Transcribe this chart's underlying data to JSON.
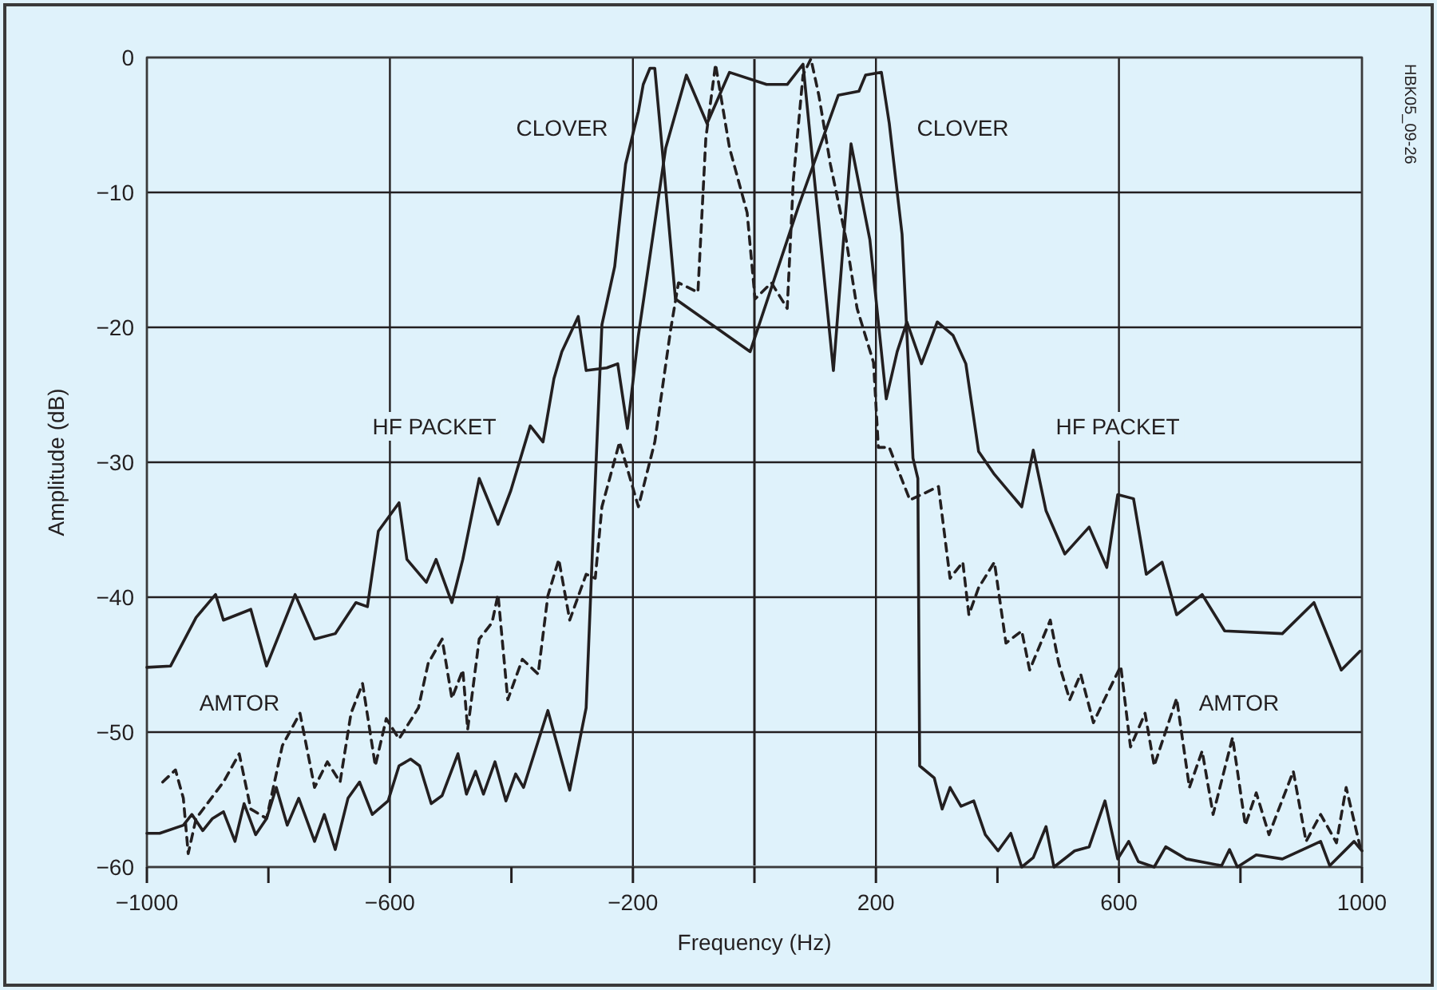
{
  "chart_data": {
    "type": "line",
    "xlabel": "Frequency (Hz)",
    "ylabel": "Amplitude (dB)",
    "xlim": [
      -1000,
      1000
    ],
    "ylim": [
      -60,
      0
    ],
    "xticks": [
      -1000,
      {
        "value": -800,
        "label": null
      },
      -600,
      {
        "value": -400,
        "label": null
      },
      -200,
      {
        "value": 0,
        "label": null
      },
      200,
      {
        "value": 400,
        "label": null
      },
      600,
      {
        "value": 800,
        "label": null
      },
      1000
    ],
    "yticks": [
      -60,
      -50,
      -40,
      -30,
      -20,
      -10,
      0
    ],
    "grid": true,
    "marker": "none",
    "ref_lines": [
      {
        "axis": "x",
        "value": 0,
        "label": null
      }
    ],
    "annotations": [
      "CLOVER",
      "CLOVER",
      "HF PACKET",
      "HF PACKET",
      "AMTOR",
      "AMTOR",
      "HBK05_09-26"
    ],
    "series": [
      {
        "color": "#231f20",
        "line_style": "solid",
        "x": [
          -1000,
          -961,
          -919,
          -887,
          -874,
          -829,
          -803,
          -756,
          -724,
          -690,
          -656,
          -637,
          -619,
          -585,
          -572,
          -540,
          -524,
          -498,
          -480,
          -453,
          -422,
          -401,
          -369,
          -348,
          -330,
          -317,
          -290,
          -277,
          -243,
          -225,
          -209,
          -191,
          -146,
          -112,
          -78,
          -41,
          20,
          54,
          80,
          130,
          159,
          190,
          217,
          235,
          251,
          275,
          301,
          327,
          348,
          369,
          395,
          440,
          459,
          480,
          511,
          551,
          580,
          598,
          624,
          645,
          671,
          695,
          737,
          774,
          869,
          921,
          966,
          997
        ],
        "values": [
          -45.2,
          -45.1,
          -41.5,
          -39.8,
          -41.7,
          -40.9,
          -45.1,
          -39.8,
          -43.1,
          -42.7,
          -40.4,
          -40.7,
          -35.1,
          -33.0,
          -37.2,
          -38.9,
          -37.2,
          -40.4,
          -37.2,
          -31.2,
          -34.6,
          -32.1,
          -27.3,
          -28.5,
          -23.8,
          -21.8,
          -19.2,
          -23.2,
          -23.0,
          -22.7,
          -27.5,
          -20.6,
          -6.7,
          -1.3,
          -4.9,
          -1.1,
          -2.0,
          -2.0,
          -0.5,
          -23.2,
          -6.4,
          -13.5,
          -25.3,
          -21.8,
          -19.6,
          -22.7,
          -19.6,
          -20.6,
          -22.7,
          -29.2,
          -30.9,
          -33.3,
          -29.1,
          -33.6,
          -36.8,
          -34.8,
          -37.8,
          -32.4,
          -32.7,
          -38.3,
          -37.4,
          -41.3,
          -39.8,
          -42.5,
          -42.7,
          -40.4,
          -45.4,
          -44.0
        ]
      },
      {
        "color": "#231f20",
        "line_style": "dashed",
        "x": [
          -974,
          -953,
          -940,
          -932,
          -919,
          -874,
          -848,
          -829,
          -803,
          -777,
          -748,
          -724,
          -703,
          -682,
          -664,
          -645,
          -624,
          -606,
          -585,
          -553,
          -537,
          -514,
          -498,
          -480,
          -472,
          -453,
          -432,
          -422,
          -406,
          -382,
          -356,
          -340,
          -322,
          -304,
          -277,
          -262,
          -251,
          -222,
          -191,
          -164,
          -138,
          -125,
          -93,
          -80,
          -64,
          -41,
          -12,
          1,
          28,
          54,
          64,
          80,
          93,
          106,
          125,
          151,
          169,
          196,
          204,
          222,
          256,
          303,
          322,
          343,
          353,
          369,
          395,
          414,
          440,
          453,
          487,
          501,
          519,
          537,
          558,
          577,
          603,
          619,
          643,
          658,
          695,
          716,
          737,
          755,
          787,
          808,
          826,
          847,
          887,
          908,
          932,
          958,
          974,
          997
        ],
        "values": [
          -53.7,
          -52.8,
          -54.9,
          -59.0,
          -56.4,
          -53.7,
          -51.6,
          -55.7,
          -56.4,
          -51.0,
          -48.6,
          -54.1,
          -52.2,
          -53.7,
          -48.6,
          -46.4,
          -52.5,
          -49.0,
          -50.5,
          -48.2,
          -44.9,
          -43.1,
          -47.5,
          -45.4,
          -49.8,
          -43.1,
          -41.9,
          -39.8,
          -47.6,
          -44.6,
          -45.7,
          -39.9,
          -37.2,
          -41.7,
          -38.3,
          -38.6,
          -33.3,
          -28.5,
          -33.3,
          -28.5,
          -20.2,
          -16.7,
          -17.4,
          -6.0,
          -0.5,
          -6.7,
          -11.5,
          -17.9,
          -16.7,
          -18.6,
          -9.1,
          -1.3,
          -0.1,
          -2.8,
          -7.9,
          -13.5,
          -18.6,
          -22.6,
          -28.9,
          -28.9,
          -32.8,
          -31.8,
          -38.6,
          -37.4,
          -41.3,
          -39.3,
          -37.4,
          -43.4,
          -42.5,
          -45.4,
          -41.7,
          -44.9,
          -47.6,
          -45.7,
          -49.3,
          -47.5,
          -45.1,
          -51.1,
          -48.6,
          -52.5,
          -47.5,
          -54.1,
          -51.4,
          -56.1,
          -50.4,
          -56.9,
          -54.5,
          -57.6,
          -52.9,
          -58.1,
          -56.1,
          -58.2,
          -54.1,
          -58.5
        ]
      },
      {
        "color": "#231f20",
        "line_style": "solid",
        "x": [
          -1000,
          -979,
          -940,
          -926,
          -908,
          -892,
          -874,
          -855,
          -840,
          -821,
          -803,
          -787,
          -769,
          -750,
          -724,
          -708,
          -690,
          -669,
          -650,
          -629,
          -603,
          -585,
          -566,
          -551,
          -532,
          -514,
          -488,
          -474,
          -459,
          -446,
          -427,
          -409,
          -393,
          -380,
          -340,
          -304,
          -277,
          -264,
          -251,
          -230,
          -212,
          -191,
          -183,
          -172,
          -164,
          -151,
          -130,
          -7,
          72,
          138,
          172,
          183,
          209,
          222,
          243,
          261,
          269,
          272,
          296,
          309,
          322,
          340,
          361,
          380,
          401,
          422,
          440,
          459,
          480,
          493,
          527,
          551,
          577,
          598,
          616,
          632,
          658,
          677,
          711,
          769,
          782,
          795,
          826,
          869,
          932,
          947,
          987,
          1000
        ],
        "values": [
          -57.5,
          -57.5,
          -56.9,
          -56.1,
          -57.3,
          -56.4,
          -55.9,
          -58.1,
          -55.3,
          -57.6,
          -56.4,
          -54.1,
          -56.9,
          -54.9,
          -58.1,
          -56.1,
          -58.7,
          -54.9,
          -53.7,
          -56.1,
          -55.1,
          -52.5,
          -52.0,
          -52.5,
          -55.3,
          -54.7,
          -51.6,
          -54.6,
          -52.9,
          -54.6,
          -52.2,
          -55.1,
          -53.1,
          -54.1,
          -48.4,
          -54.3,
          -48.2,
          -33.6,
          -19.8,
          -15.5,
          -7.9,
          -4.0,
          -2.0,
          -0.8,
          -0.8,
          -7.2,
          -17.9,
          -21.8,
          -11.1,
          -2.8,
          -2.5,
          -1.3,
          -1.1,
          -4.9,
          -13.1,
          -29.7,
          -31.2,
          -52.5,
          -53.4,
          -55.7,
          -54.1,
          -55.5,
          -55.1,
          -57.6,
          -58.8,
          -57.5,
          -60,
          -59.3,
          -57.0,
          -60,
          -58.8,
          -58.5,
          -55.1,
          -59.4,
          -58.1,
          -59.6,
          -60,
          -58.5,
          -59.4,
          -59.9,
          -58.7,
          -60,
          -59.1,
          -59.4,
          -58.1,
          -59.9,
          -58.1,
          -58.8
        ]
      }
    ]
  }
}
